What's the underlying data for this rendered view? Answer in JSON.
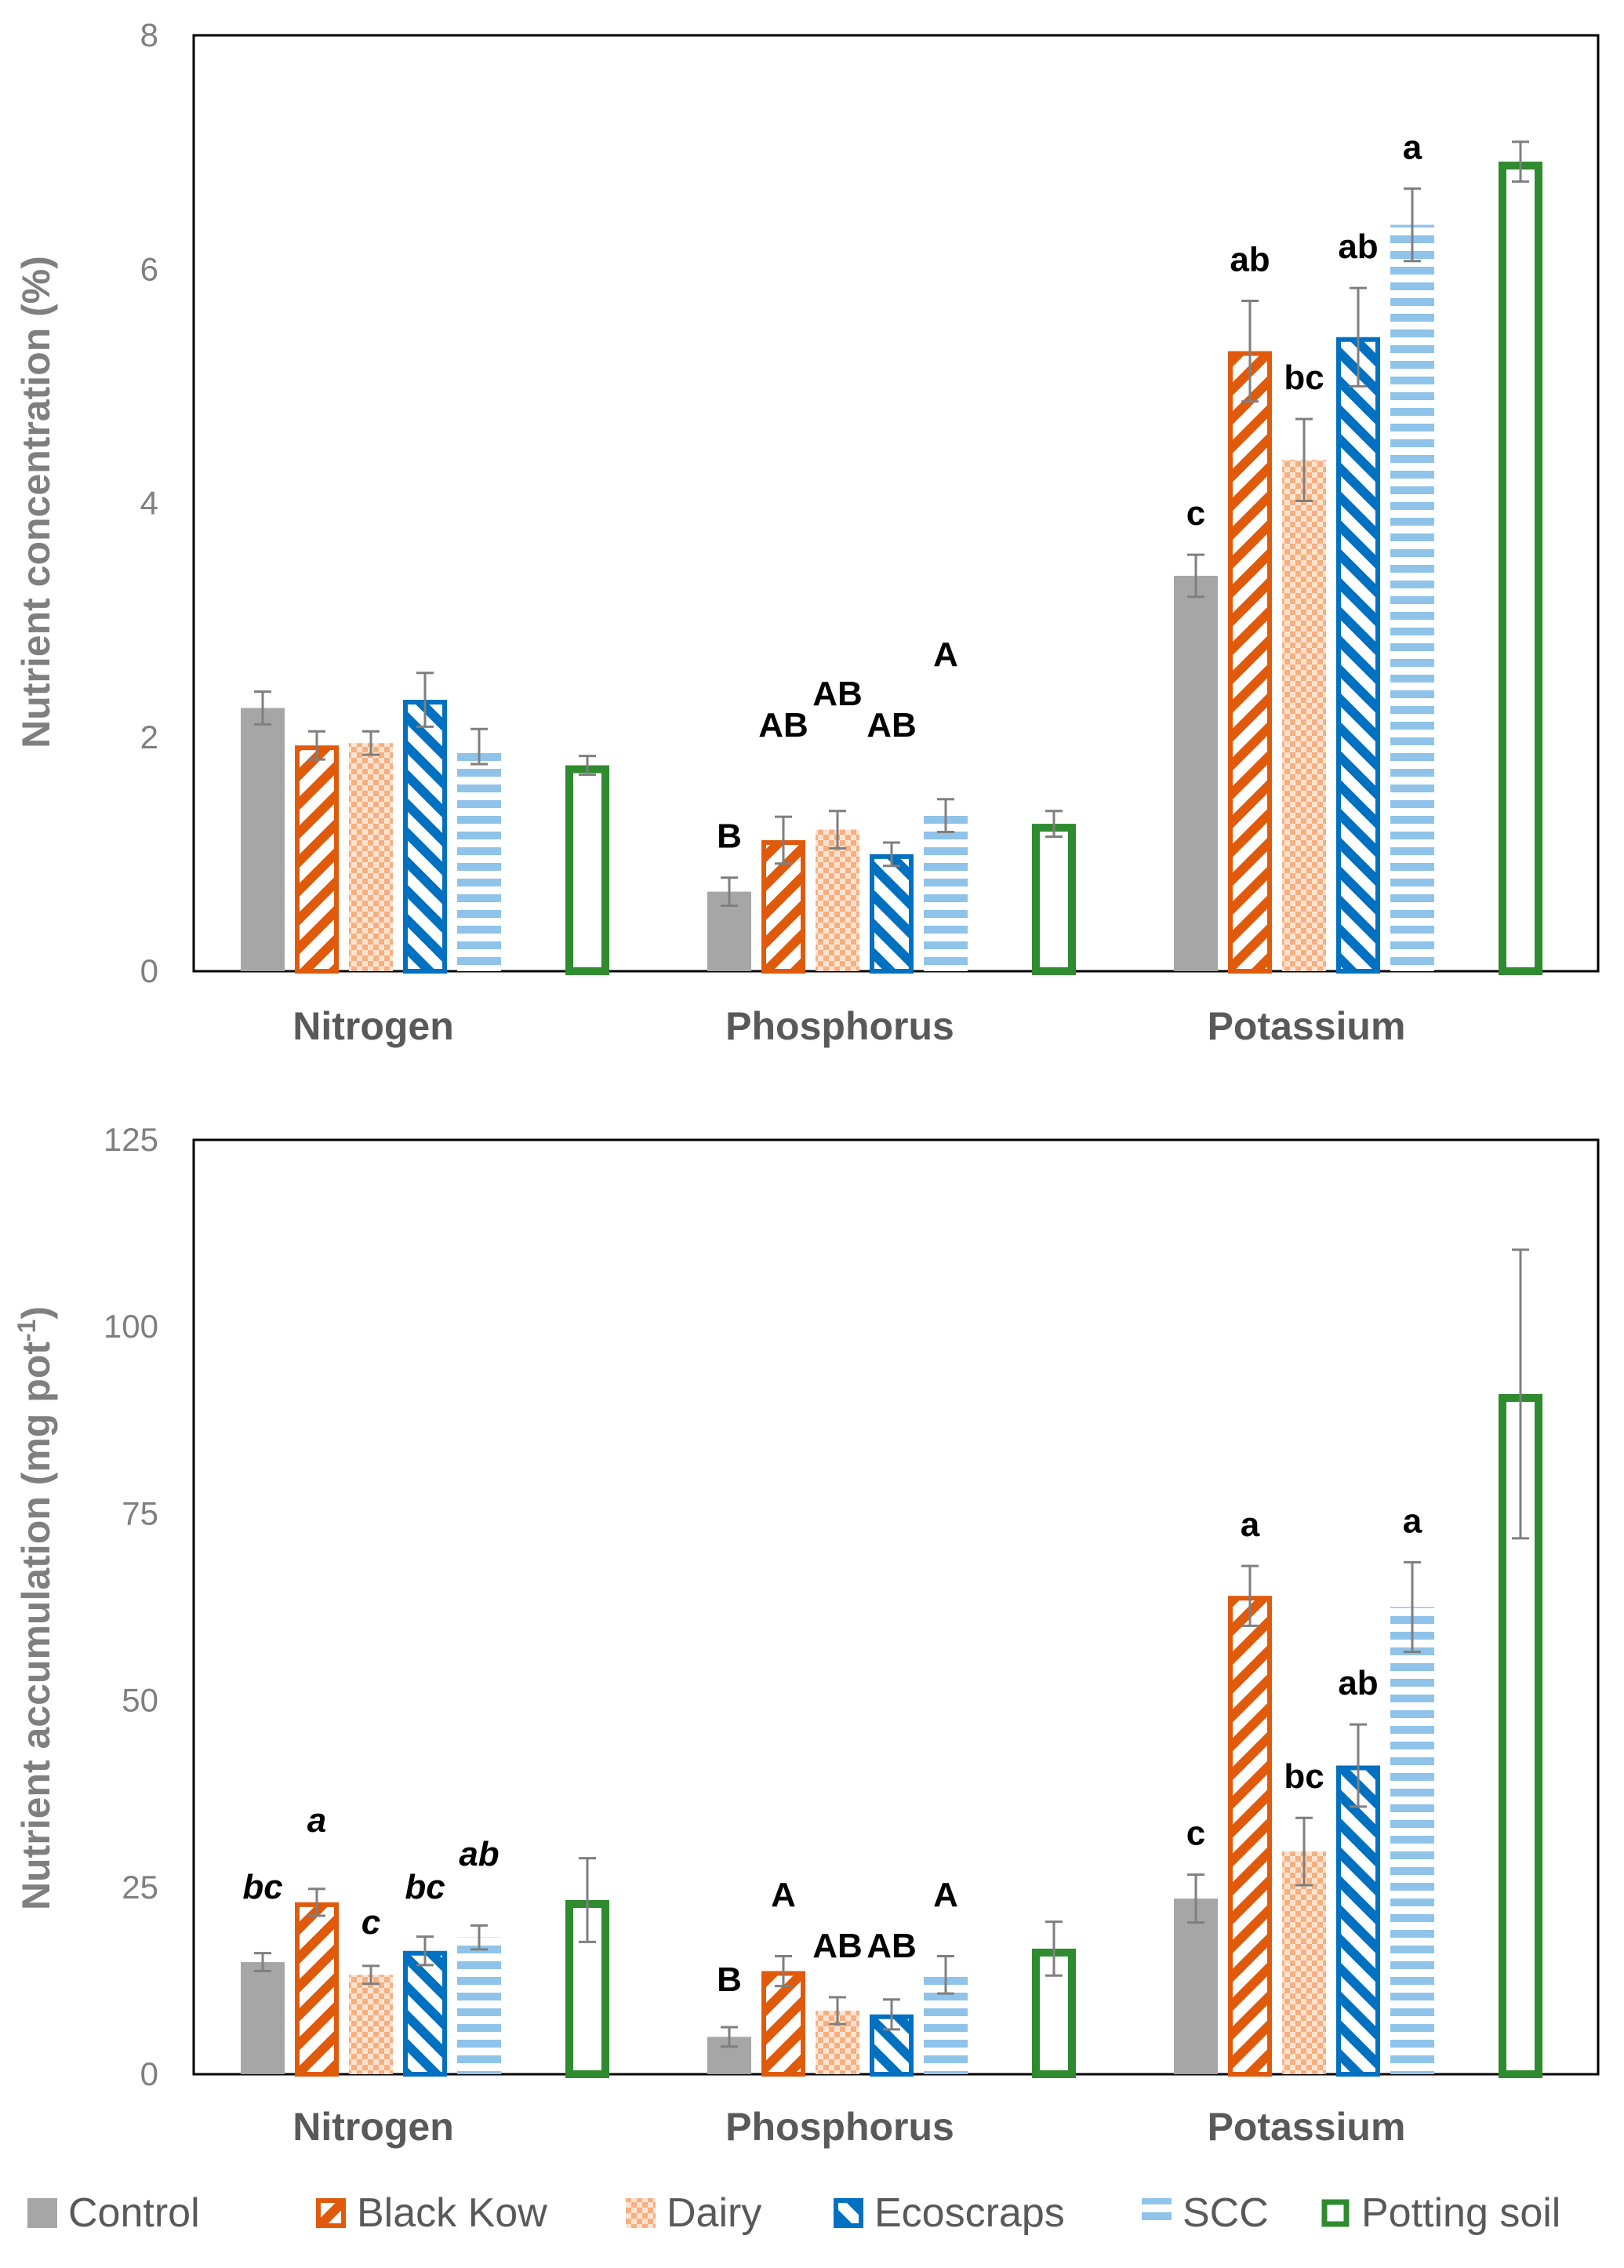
{
  "colors": {
    "Control": "#a6a6a6",
    "Black Kow": "#e05a0c",
    "Dairy": "#f5b082",
    "Ecoscraps": "#0070c0",
    "SCC": "#8fc3ea",
    "Potting soil": "#2e8b2e"
  },
  "legend": [
    "Control",
    "Black Kow",
    "Dairy",
    "Ecoscraps",
    "SCC",
    "Potting soil"
  ],
  "chart_data": [
    {
      "type": "bar",
      "ylabel": "Nutrient concentration (%)",
      "ylim": [
        0,
        8
      ],
      "yticks": [
        "0",
        "2",
        "4",
        "6",
        "8"
      ],
      "categories": [
        "Nitrogen",
        "Phosphorus",
        "Potassium"
      ],
      "series": [
        {
          "name": "Control",
          "values": [
            2.25,
            0.68,
            3.38
          ],
          "errors": [
            0.14,
            0.12,
            0.18
          ]
        },
        {
          "name": "Black Kow",
          "values": [
            1.93,
            1.12,
            5.3
          ],
          "errors": [
            0.12,
            0.2,
            0.43
          ]
        },
        {
          "name": "Dairy",
          "values": [
            1.95,
            1.21,
            4.37
          ],
          "errors": [
            0.1,
            0.16,
            0.35
          ]
        },
        {
          "name": "Ecoscraps",
          "values": [
            2.32,
            1.0,
            5.42
          ],
          "errors": [
            0.23,
            0.1,
            0.42
          ]
        },
        {
          "name": "SCC",
          "values": [
            1.92,
            1.33,
            6.38
          ],
          "errors": [
            0.15,
            0.14,
            0.31
          ]
        },
        {
          "name": "Potting soil",
          "values": [
            1.76,
            1.26,
            6.92
          ],
          "errors": [
            0.08,
            0.11,
            0.17
          ]
        }
      ],
      "annotations": [
        [
          "",
          "",
          "",
          "",
          "",
          ""
        ],
        [
          "B",
          "AB",
          "AB",
          "AB",
          "A",
          ""
        ],
        [
          "c",
          "ab",
          "bc",
          "ab",
          "a",
          ""
        ]
      ],
      "annotation_italic": false
    },
    {
      "type": "bar",
      "ylabel": "Nutrient accumulation (mg pot",
      "ylabel_sup": "-1",
      "ylabel_end": ")",
      "ylim": [
        0,
        125
      ],
      "yticks": [
        "0",
        "25",
        "50",
        "75",
        "100",
        "125"
      ],
      "categories": [
        "Nitrogen",
        "Phosphorus",
        "Potassium"
      ],
      "series": [
        {
          "name": "Control",
          "values": [
            15.0,
            5.0,
            23.5
          ],
          "errors": [
            1.2,
            1.3,
            3.2
          ]
        },
        {
          "name": "Black Kow",
          "values": [
            23.0,
            13.8,
            64.0
          ],
          "errors": [
            1.8,
            2.0,
            4.0
          ]
        },
        {
          "name": "Dairy",
          "values": [
            13.3,
            8.5,
            29.8
          ],
          "errors": [
            1.2,
            1.8,
            4.5
          ]
        },
        {
          "name": "Ecoscraps",
          "values": [
            16.5,
            8.0,
            41.3
          ],
          "errors": [
            1.9,
            2.0,
            5.5
          ]
        },
        {
          "name": "SCC",
          "values": [
            18.3,
            13.3,
            62.5
          ],
          "errors": [
            1.6,
            2.5,
            6.0
          ]
        },
        {
          "name": "Potting soil",
          "values": [
            23.3,
            16.8,
            91.0
          ],
          "errors": [
            5.6,
            3.6,
            19.3
          ]
        }
      ],
      "annotations": [
        [
          "bc",
          "a",
          "c",
          "bc",
          "ab",
          ""
        ],
        [
          "B",
          "A",
          "AB",
          "AB",
          "A",
          ""
        ],
        [
          "c",
          "a",
          "bc",
          "ab",
          "a",
          ""
        ]
      ],
      "annotation_italic_categories": [
        0
      ]
    }
  ]
}
